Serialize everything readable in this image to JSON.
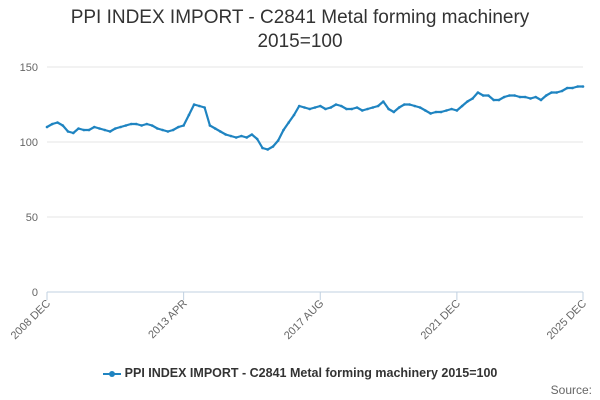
{
  "title": {
    "line1": "PPI INDEX IMPORT - C2841 Metal forming machinery",
    "line2": "2015=100"
  },
  "legend": {
    "label": "PPI INDEX IMPORT - C2841 Metal forming machinery 2015=100"
  },
  "source": {
    "label": "Source:"
  },
  "colors": {
    "series": "#1f84c1",
    "grid": "#e6e6e6",
    "axis": "#c0d0e0",
    "text": "#333333",
    "tick_text": "#666666"
  },
  "chart_data": {
    "type": "line",
    "title": "PPI INDEX IMPORT - C2841 Metal forming machinery 2015=100",
    "xlabel": "",
    "ylabel": "",
    "ylim": [
      0,
      150
    ],
    "yticks": [
      0,
      50,
      100,
      150
    ],
    "grid": true,
    "legend_position": "bottom",
    "x_tick_labels": [
      "2008 DEC",
      "2013 APR",
      "2017 AUG",
      "2021 DEC",
      "2025 DEC"
    ],
    "x_tick_dates": [
      "2008-12",
      "2013-04",
      "2017-08",
      "2021-12",
      "2025-12"
    ],
    "series": [
      {
        "name": "PPI INDEX IMPORT - C2841 Metal forming machinery 2015=100",
        "x": [
          "2008-12",
          "2009-02",
          "2009-04",
          "2009-06",
          "2009-08",
          "2009-10",
          "2009-12",
          "2010-02",
          "2010-04",
          "2010-06",
          "2010-08",
          "2010-10",
          "2010-12",
          "2011-02",
          "2011-04",
          "2011-06",
          "2011-08",
          "2011-10",
          "2011-12",
          "2012-02",
          "2012-04",
          "2012-06",
          "2012-08",
          "2012-10",
          "2012-12",
          "2013-02",
          "2013-04",
          "2013-06",
          "2013-08",
          "2013-10",
          "2013-12",
          "2014-02",
          "2014-04",
          "2014-06",
          "2014-08",
          "2014-10",
          "2014-12",
          "2015-02",
          "2015-04",
          "2015-06",
          "2015-08",
          "2015-10",
          "2015-12",
          "2016-02",
          "2016-04",
          "2016-06",
          "2016-08",
          "2016-10",
          "2016-12",
          "2017-02",
          "2017-04",
          "2017-06",
          "2017-08",
          "2017-10",
          "2017-12",
          "2018-02",
          "2018-04",
          "2018-06",
          "2018-08",
          "2018-10",
          "2018-12",
          "2019-02",
          "2019-04",
          "2019-06",
          "2019-08",
          "2019-10",
          "2019-12",
          "2020-02",
          "2020-04",
          "2020-06",
          "2020-08",
          "2020-10",
          "2020-12",
          "2021-02",
          "2021-04",
          "2021-06",
          "2021-08",
          "2021-10",
          "2021-12",
          "2022-02",
          "2022-04",
          "2022-06",
          "2022-08",
          "2022-10",
          "2022-12",
          "2023-02",
          "2023-04",
          "2023-06",
          "2023-08",
          "2023-10",
          "2023-12",
          "2024-02",
          "2024-04",
          "2024-06",
          "2024-08",
          "2024-10",
          "2024-12",
          "2025-02",
          "2025-04",
          "2025-06",
          "2025-08",
          "2025-10",
          "2025-12"
        ],
        "y": [
          110,
          112,
          113,
          111,
          107,
          106,
          109,
          108,
          108,
          110,
          109,
          108,
          107,
          109,
          110,
          111,
          112,
          112,
          111,
          112,
          111,
          109,
          108,
          107,
          108,
          110,
          111,
          118,
          125,
          124,
          123,
          111,
          109,
          107,
          105,
          104,
          103,
          104,
          103,
          105,
          102,
          96,
          95,
          97,
          101,
          108,
          113,
          118,
          124,
          123,
          122,
          123,
          124,
          122,
          123,
          125,
          124,
          122,
          122,
          123,
          121,
          122,
          123,
          124,
          127,
          122,
          120,
          123,
          125,
          125,
          124,
          123,
          121,
          119,
          120,
          120,
          121,
          122,
          121,
          124,
          127,
          129,
          133,
          131,
          131,
          128,
          128,
          130,
          131,
          131,
          130,
          130,
          129,
          130,
          128,
          131,
          133,
          133,
          134,
          136,
          136,
          137,
          137
        ]
      }
    ]
  }
}
